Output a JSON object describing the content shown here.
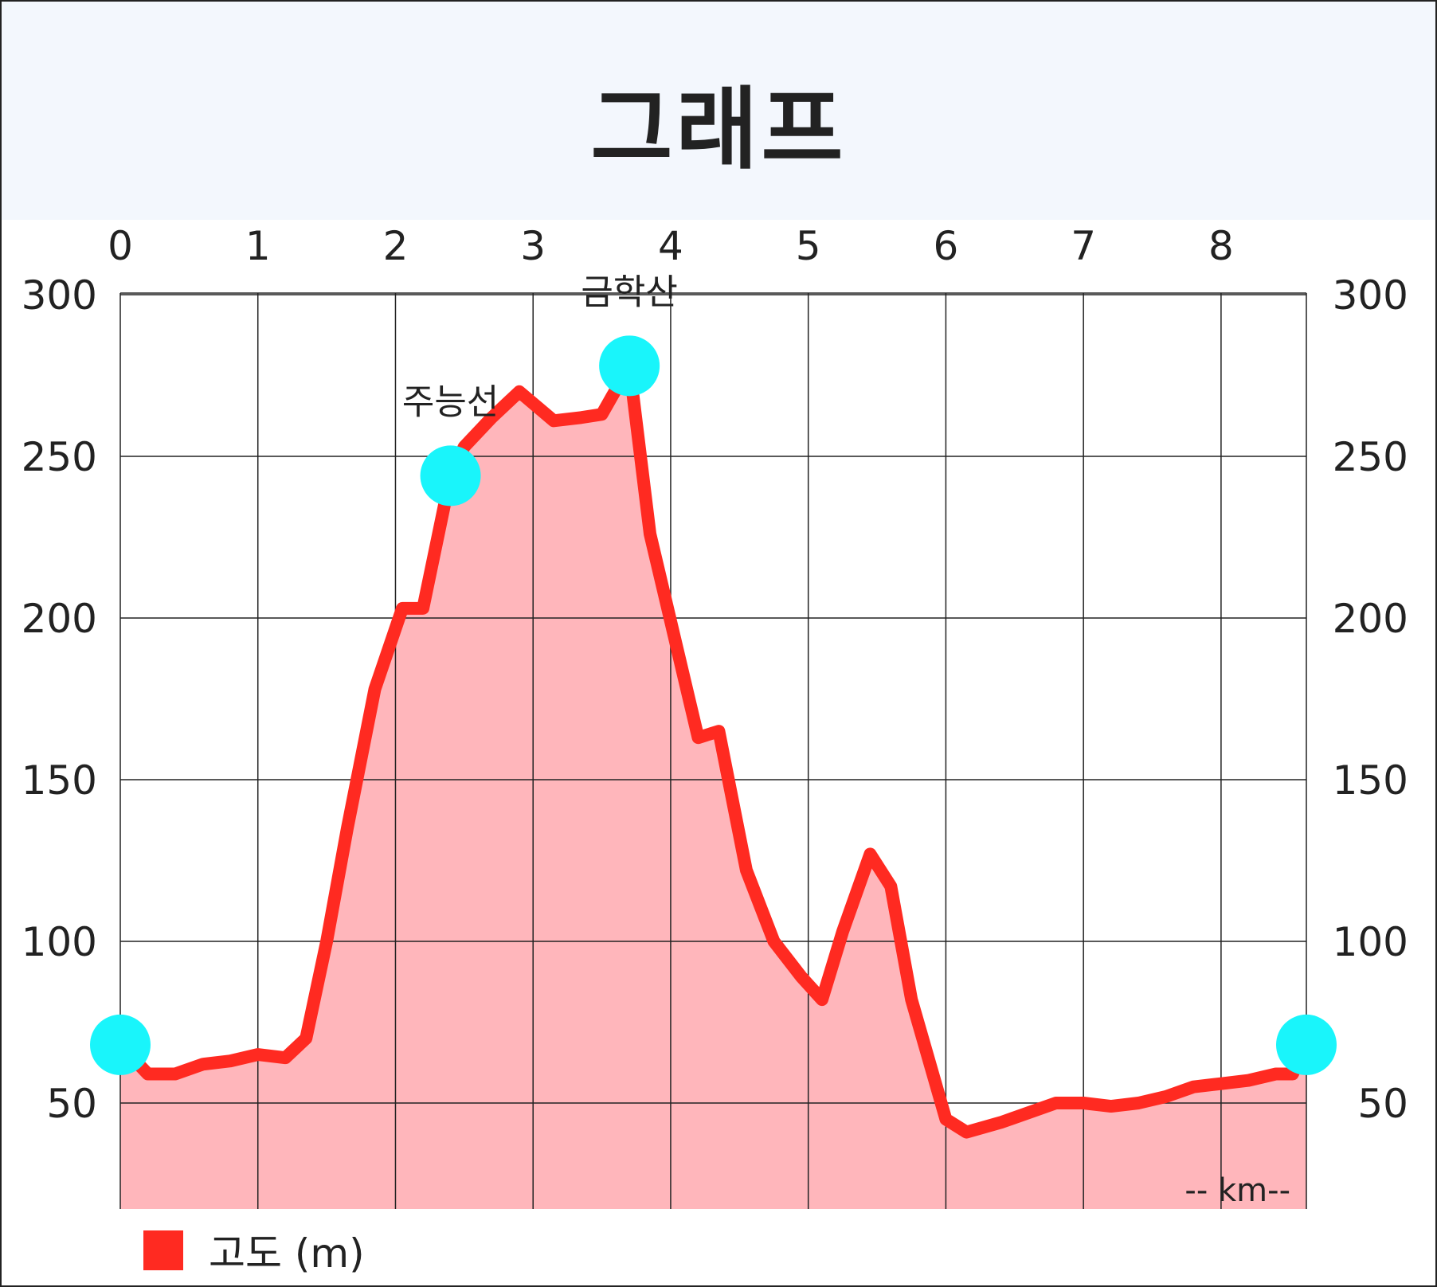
{
  "title": "그래프",
  "colors": {
    "line": "#ff2a21",
    "fill": "#ffb6bb",
    "marker": "#19f5fb",
    "grid": "#222222",
    "header_bg": "#f3f7fd"
  },
  "legend": {
    "label": "고도 (m)"
  },
  "unit_label": "-- km--",
  "chart_data": {
    "type": "area",
    "x_axis": {
      "range": [
        0,
        8.62
      ],
      "ticks": [
        0,
        1,
        2,
        3,
        4,
        5,
        6,
        7,
        8
      ],
      "position": "top"
    },
    "y_axis": {
      "range": [
        17,
        300
      ],
      "ticks": [
        50,
        100,
        150,
        200,
        250,
        300
      ],
      "sides": [
        "left",
        "right"
      ]
    },
    "grid": true,
    "legend_position": "bottom-left",
    "series": [
      {
        "name": "고도 (m)",
        "points": [
          [
            0,
            68
          ],
          [
            0.2,
            59
          ],
          [
            0.4,
            59
          ],
          [
            0.6,
            62
          ],
          [
            0.8,
            63
          ],
          [
            1.0,
            65
          ],
          [
            1.2,
            64
          ],
          [
            1.35,
            70
          ],
          [
            1.5,
            100
          ],
          [
            1.65,
            135
          ],
          [
            1.85,
            178
          ],
          [
            2.05,
            203
          ],
          [
            2.2,
            203
          ],
          [
            2.4,
            244
          ],
          [
            2.5,
            253
          ],
          [
            2.7,
            262
          ],
          [
            2.9,
            270
          ],
          [
            3.15,
            261
          ],
          [
            3.35,
            262
          ],
          [
            3.5,
            263
          ],
          [
            3.7,
            278
          ],
          [
            3.85,
            226
          ],
          [
            4.05,
            190
          ],
          [
            4.2,
            163
          ],
          [
            4.35,
            165
          ],
          [
            4.55,
            122
          ],
          [
            4.75,
            100
          ],
          [
            4.95,
            89
          ],
          [
            5.1,
            82
          ],
          [
            5.25,
            103
          ],
          [
            5.45,
            127
          ],
          [
            5.6,
            117
          ],
          [
            5.75,
            82
          ],
          [
            6.0,
            45
          ],
          [
            6.15,
            41
          ],
          [
            6.4,
            44
          ],
          [
            6.6,
            47
          ],
          [
            6.8,
            50
          ],
          [
            7.0,
            50
          ],
          [
            7.2,
            49
          ],
          [
            7.4,
            50
          ],
          [
            7.6,
            52
          ],
          [
            7.8,
            55
          ],
          [
            8.0,
            56
          ],
          [
            8.2,
            57
          ],
          [
            8.4,
            59
          ],
          [
            8.52,
            59
          ],
          [
            8.62,
            68
          ]
        ]
      }
    ],
    "markers": [
      {
        "x": 0,
        "y": 68,
        "label": ""
      },
      {
        "x": 2.4,
        "y": 244,
        "label": "주능선"
      },
      {
        "x": 3.7,
        "y": 278,
        "label": "금학산"
      },
      {
        "x": 8.62,
        "y": 68,
        "label": ""
      }
    ]
  }
}
